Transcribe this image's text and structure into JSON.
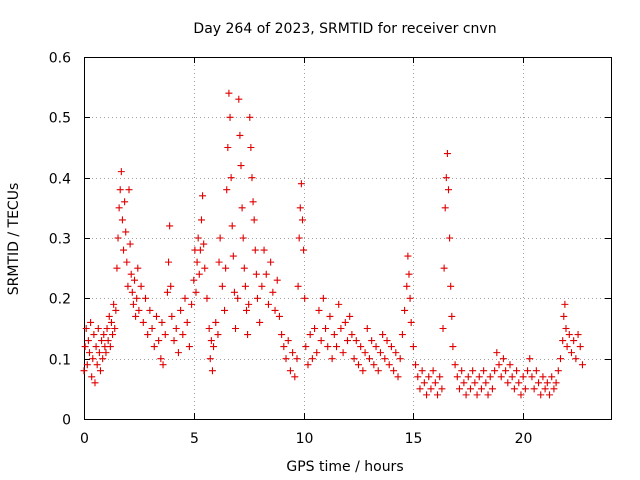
{
  "chart_data": {
    "type": "scatter",
    "title": "Day 264 of 2023, SRMTID for receiver cnvn",
    "xlabel": "GPS time / hours",
    "ylabel": "SRMTID / TECUs",
    "xlim": [
      0,
      24
    ],
    "ylim": [
      0,
      0.6
    ],
    "xticks": [
      0,
      5,
      10,
      15,
      20
    ],
    "xtick_labels": [
      "0",
      "5",
      "10",
      "15",
      "20"
    ],
    "yticks": [
      0,
      0.1,
      0.2,
      0.3,
      0.4,
      0.5,
      0.6
    ],
    "ytick_labels": [
      "0",
      "0.1",
      "0.2",
      "0.3",
      "0.4",
      "0.5",
      "0.6"
    ],
    "grid": true,
    "marker": "+",
    "marker_color": "#e00000",
    "series": [
      {
        "name": "SRMTID",
        "points": [
          [
            0.0,
            0.08
          ],
          [
            0.05,
            0.12
          ],
          [
            0.1,
            0.15
          ],
          [
            0.15,
            0.09
          ],
          [
            0.2,
            0.13
          ],
          [
            0.25,
            0.11
          ],
          [
            0.3,
            0.16
          ],
          [
            0.35,
            0.07
          ],
          [
            0.4,
            0.1
          ],
          [
            0.45,
            0.14
          ],
          [
            0.5,
            0.06
          ],
          [
            0.55,
            0.12
          ],
          [
            0.6,
            0.09
          ],
          [
            0.65,
            0.15
          ],
          [
            0.7,
            0.11
          ],
          [
            0.75,
            0.08
          ],
          [
            0.8,
            0.13
          ],
          [
            0.85,
            0.1
          ],
          [
            0.9,
            0.14
          ],
          [
            0.95,
            0.12
          ],
          [
            1.0,
            0.11
          ],
          [
            1.05,
            0.15
          ],
          [
            1.1,
            0.13
          ],
          [
            1.15,
            0.17
          ],
          [
            1.2,
            0.12
          ],
          [
            1.25,
            0.16
          ],
          [
            1.3,
            0.14
          ],
          [
            1.35,
            0.19
          ],
          [
            1.4,
            0.15
          ],
          [
            1.45,
            0.18
          ],
          [
            1.5,
            0.25
          ],
          [
            1.55,
            0.3
          ],
          [
            1.6,
            0.35
          ],
          [
            1.65,
            0.38
          ],
          [
            1.7,
            0.41
          ],
          [
            1.75,
            0.33
          ],
          [
            1.8,
            0.28
          ],
          [
            1.85,
            0.36
          ],
          [
            1.9,
            0.31
          ],
          [
            1.95,
            0.26
          ],
          [
            2.0,
            0.22
          ],
          [
            2.05,
            0.38
          ],
          [
            2.1,
            0.29
          ],
          [
            2.15,
            0.24
          ],
          [
            2.2,
            0.21
          ],
          [
            2.25,
            0.19
          ],
          [
            2.3,
            0.23
          ],
          [
            2.35,
            0.17
          ],
          [
            2.4,
            0.2
          ],
          [
            2.45,
            0.25
          ],
          [
            2.5,
            0.18
          ],
          [
            2.6,
            0.22
          ],
          [
            2.7,
            0.16
          ],
          [
            2.8,
            0.2
          ],
          [
            2.9,
            0.14
          ],
          [
            3.0,
            0.18
          ],
          [
            3.1,
            0.15
          ],
          [
            3.2,
            0.12
          ],
          [
            3.3,
            0.17
          ],
          [
            3.4,
            0.13
          ],
          [
            3.5,
            0.1
          ],
          [
            3.55,
            0.16
          ],
          [
            3.6,
            0.09
          ],
          [
            3.7,
            0.14
          ],
          [
            3.8,
            0.21
          ],
          [
            3.85,
            0.26
          ],
          [
            3.9,
            0.32
          ],
          [
            3.95,
            0.22
          ],
          [
            4.0,
            0.17
          ],
          [
            4.1,
            0.13
          ],
          [
            4.2,
            0.15
          ],
          [
            4.3,
            0.11
          ],
          [
            4.4,
            0.18
          ],
          [
            4.5,
            0.14
          ],
          [
            4.6,
            0.2
          ],
          [
            4.7,
            0.16
          ],
          [
            4.8,
            0.12
          ],
          [
            4.9,
            0.19
          ],
          [
            5.0,
            0.23
          ],
          [
            5.05,
            0.28
          ],
          [
            5.1,
            0.21
          ],
          [
            5.15,
            0.26
          ],
          [
            5.2,
            0.3
          ],
          [
            5.25,
            0.24
          ],
          [
            5.3,
            0.28
          ],
          [
            5.35,
            0.33
          ],
          [
            5.4,
            0.37
          ],
          [
            5.45,
            0.29
          ],
          [
            5.5,
            0.25
          ],
          [
            5.6,
            0.2
          ],
          [
            5.7,
            0.15
          ],
          [
            5.75,
            0.1
          ],
          [
            5.8,
            0.13
          ],
          [
            5.85,
            0.08
          ],
          [
            5.9,
            0.12
          ],
          [
            6.0,
            0.16
          ],
          [
            6.1,
            0.14
          ],
          [
            6.15,
            0.26
          ],
          [
            6.2,
            0.3
          ],
          [
            6.3,
            0.22
          ],
          [
            6.4,
            0.18
          ],
          [
            6.45,
            0.25
          ],
          [
            6.5,
            0.38
          ],
          [
            6.55,
            0.45
          ],
          [
            6.6,
            0.54
          ],
          [
            6.65,
            0.5
          ],
          [
            6.7,
            0.4
          ],
          [
            6.75,
            0.32
          ],
          [
            6.8,
            0.27
          ],
          [
            6.85,
            0.21
          ],
          [
            6.9,
            0.15
          ],
          [
            7.0,
            0.2
          ],
          [
            7.05,
            0.53
          ],
          [
            7.1,
            0.47
          ],
          [
            7.15,
            0.42
          ],
          [
            7.2,
            0.35
          ],
          [
            7.25,
            0.3
          ],
          [
            7.3,
            0.25
          ],
          [
            7.35,
            0.22
          ],
          [
            7.4,
            0.18
          ],
          [
            7.45,
            0.14
          ],
          [
            7.5,
            0.19
          ],
          [
            7.55,
            0.5
          ],
          [
            7.6,
            0.45
          ],
          [
            7.65,
            0.4
          ],
          [
            7.7,
            0.36
          ],
          [
            7.75,
            0.33
          ],
          [
            7.8,
            0.28
          ],
          [
            7.85,
            0.24
          ],
          [
            7.9,
            0.2
          ],
          [
            8.0,
            0.16
          ],
          [
            8.1,
            0.22
          ],
          [
            8.2,
            0.28
          ],
          [
            8.3,
            0.24
          ],
          [
            8.4,
            0.19
          ],
          [
            8.5,
            0.26
          ],
          [
            8.6,
            0.21
          ],
          [
            8.7,
            0.18
          ],
          [
            8.8,
            0.23
          ],
          [
            8.9,
            0.17
          ],
          [
            9.0,
            0.14
          ],
          [
            9.1,
            0.12
          ],
          [
            9.2,
            0.1
          ],
          [
            9.3,
            0.13
          ],
          [
            9.4,
            0.08
          ],
          [
            9.5,
            0.11
          ],
          [
            9.6,
            0.07
          ],
          [
            9.7,
            0.1
          ],
          [
            9.75,
            0.22
          ],
          [
            9.8,
            0.3
          ],
          [
            9.85,
            0.35
          ],
          [
            9.9,
            0.39
          ],
          [
            9.95,
            0.33
          ],
          [
            10.0,
            0.28
          ],
          [
            10.05,
            0.2
          ],
          [
            10.1,
            0.12
          ],
          [
            10.2,
            0.09
          ],
          [
            10.3,
            0.14
          ],
          [
            10.4,
            0.1
          ],
          [
            10.5,
            0.15
          ],
          [
            10.6,
            0.11
          ],
          [
            10.7,
            0.18
          ],
          [
            10.8,
            0.13
          ],
          [
            10.9,
            0.2
          ],
          [
            11.0,
            0.15
          ],
          [
            11.1,
            0.12
          ],
          [
            11.2,
            0.17
          ],
          [
            11.3,
            0.1
          ],
          [
            11.4,
            0.14
          ],
          [
            11.5,
            0.12
          ],
          [
            11.6,
            0.19
          ],
          [
            11.7,
            0.15
          ],
          [
            11.8,
            0.11
          ],
          [
            11.9,
            0.16
          ],
          [
            12.0,
            0.13
          ],
          [
            12.1,
            0.17
          ],
          [
            12.2,
            0.14
          ],
          [
            12.3,
            0.1
          ],
          [
            12.4,
            0.13
          ],
          [
            12.5,
            0.09
          ],
          [
            12.6,
            0.12
          ],
          [
            12.7,
            0.08
          ],
          [
            12.8,
            0.11
          ],
          [
            12.9,
            0.15
          ],
          [
            13.0,
            0.1
          ],
          [
            13.1,
            0.13
          ],
          [
            13.2,
            0.09
          ],
          [
            13.3,
            0.12
          ],
          [
            13.4,
            0.08
          ],
          [
            13.5,
            0.11
          ],
          [
            13.6,
            0.14
          ],
          [
            13.7,
            0.1
          ],
          [
            13.8,
            0.13
          ],
          [
            13.9,
            0.09
          ],
          [
            14.0,
            0.12
          ],
          [
            14.1,
            0.08
          ],
          [
            14.2,
            0.11
          ],
          [
            14.3,
            0.07
          ],
          [
            14.4,
            0.1
          ],
          [
            14.5,
            0.14
          ],
          [
            14.6,
            0.18
          ],
          [
            14.7,
            0.22
          ],
          [
            14.75,
            0.27
          ],
          [
            14.8,
            0.24
          ],
          [
            14.85,
            0.2
          ],
          [
            14.9,
            0.16
          ],
          [
            15.0,
            0.12
          ],
          [
            15.1,
            0.09
          ],
          [
            15.2,
            0.07
          ],
          [
            15.3,
            0.05
          ],
          [
            15.4,
            0.08
          ],
          [
            15.5,
            0.06
          ],
          [
            15.6,
            0.04
          ],
          [
            15.7,
            0.07
          ],
          [
            15.8,
            0.05
          ],
          [
            15.9,
            0.08
          ],
          [
            16.0,
            0.06
          ],
          [
            16.1,
            0.04
          ],
          [
            16.2,
            0.07
          ],
          [
            16.3,
            0.05
          ],
          [
            16.35,
            0.15
          ],
          [
            16.4,
            0.25
          ],
          [
            16.45,
            0.35
          ],
          [
            16.5,
            0.4
          ],
          [
            16.55,
            0.44
          ],
          [
            16.6,
            0.38
          ],
          [
            16.65,
            0.3
          ],
          [
            16.7,
            0.22
          ],
          [
            16.75,
            0.17
          ],
          [
            16.8,
            0.12
          ],
          [
            16.9,
            0.09
          ],
          [
            17.0,
            0.07
          ],
          [
            17.1,
            0.05
          ],
          [
            17.2,
            0.08
          ],
          [
            17.3,
            0.06
          ],
          [
            17.4,
            0.04
          ],
          [
            17.5,
            0.07
          ],
          [
            17.6,
            0.05
          ],
          [
            17.7,
            0.08
          ],
          [
            17.8,
            0.06
          ],
          [
            17.9,
            0.04
          ],
          [
            18.0,
            0.07
          ],
          [
            18.1,
            0.05
          ],
          [
            18.2,
            0.08
          ],
          [
            18.3,
            0.06
          ],
          [
            18.4,
            0.04
          ],
          [
            18.5,
            0.07
          ],
          [
            18.6,
            0.05
          ],
          [
            18.7,
            0.08
          ],
          [
            18.8,
            0.11
          ],
          [
            18.9,
            0.09
          ],
          [
            19.0,
            0.07
          ],
          [
            19.1,
            0.1
          ],
          [
            19.2,
            0.08
          ],
          [
            19.3,
            0.06
          ],
          [
            19.4,
            0.09
          ],
          [
            19.5,
            0.07
          ],
          [
            19.6,
            0.05
          ],
          [
            19.7,
            0.08
          ],
          [
            19.8,
            0.06
          ],
          [
            19.9,
            0.04
          ],
          [
            20.0,
            0.07
          ],
          [
            20.1,
            0.05
          ],
          [
            20.2,
            0.08
          ],
          [
            20.3,
            0.1
          ],
          [
            20.4,
            0.07
          ],
          [
            20.5,
            0.05
          ],
          [
            20.6,
            0.08
          ],
          [
            20.7,
            0.06
          ],
          [
            20.8,
            0.04
          ],
          [
            20.9,
            0.07
          ],
          [
            21.0,
            0.05
          ],
          [
            21.1,
            0.06
          ],
          [
            21.2,
            0.04
          ],
          [
            21.3,
            0.07
          ],
          [
            21.4,
            0.05
          ],
          [
            21.5,
            0.06
          ],
          [
            21.6,
            0.08
          ],
          [
            21.7,
            0.1
          ],
          [
            21.8,
            0.13
          ],
          [
            21.85,
            0.17
          ],
          [
            21.9,
            0.19
          ],
          [
            21.95,
            0.15
          ],
          [
            22.0,
            0.12
          ],
          [
            22.1,
            0.14
          ],
          [
            22.2,
            0.11
          ],
          [
            22.3,
            0.13
          ],
          [
            22.4,
            0.1
          ],
          [
            22.5,
            0.14
          ],
          [
            22.6,
            0.12
          ],
          [
            22.7,
            0.09
          ]
        ]
      }
    ]
  }
}
